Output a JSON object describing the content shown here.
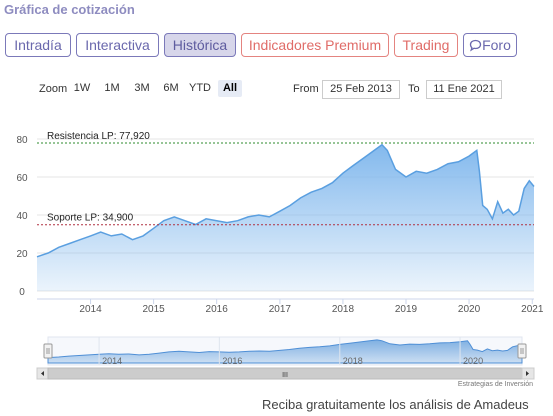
{
  "header": {
    "title": "Gráfica de cotización"
  },
  "tabs": [
    {
      "label": "Intradía",
      "style": "purple",
      "active": false
    },
    {
      "label": "Interactiva",
      "style": "purple",
      "active": false
    },
    {
      "label": "Histórica",
      "style": "purple",
      "active": true
    },
    {
      "label": "Indicadores Premium",
      "style": "red",
      "active": false
    },
    {
      "label": "Trading",
      "style": "red",
      "active": false
    },
    {
      "label": "Foro",
      "style": "purple",
      "active": false,
      "icon": "speech-bubble-icon"
    }
  ],
  "zoom": {
    "label": "Zoom",
    "buttons": [
      "1W",
      "1M",
      "3M",
      "6M",
      "YTD",
      "All"
    ],
    "selected": "All"
  },
  "date_range": {
    "from_label": "From",
    "from_value": "25 Feb 2013",
    "to_label": "To",
    "to_value": "11 Ene 2021"
  },
  "chart_data": {
    "type": "area",
    "x_label": "",
    "y_label": "",
    "ylim": [
      0,
      80
    ],
    "y_ticks": [
      "0",
      "20",
      "40",
      "60",
      "80"
    ],
    "x_ticks": [
      "2014",
      "2015",
      "2016",
      "2017",
      "2018",
      "2019",
      "2020",
      "2021"
    ],
    "x_range": [
      "2013-02-25",
      "2021-01-11"
    ],
    "series": [
      {
        "color": "#7cb5ec",
        "points": [
          [
            "2013-02-25",
            18
          ],
          [
            "2013-05-01",
            20
          ],
          [
            "2013-07-01",
            23
          ],
          [
            "2013-09-01",
            25
          ],
          [
            "2013-11-01",
            27
          ],
          [
            "2014-01-01",
            29
          ],
          [
            "2014-03-01",
            31
          ],
          [
            "2014-05-01",
            29
          ],
          [
            "2014-07-01",
            30
          ],
          [
            "2014-09-01",
            27
          ],
          [
            "2014-11-01",
            29
          ],
          [
            "2015-01-01",
            33
          ],
          [
            "2015-03-01",
            37
          ],
          [
            "2015-05-01",
            39
          ],
          [
            "2015-07-01",
            37
          ],
          [
            "2015-09-01",
            35
          ],
          [
            "2015-11-01",
            38
          ],
          [
            "2016-01-01",
            37
          ],
          [
            "2016-03-01",
            36
          ],
          [
            "2016-05-01",
            37
          ],
          [
            "2016-07-01",
            39
          ],
          [
            "2016-09-01",
            40
          ],
          [
            "2016-11-01",
            39
          ],
          [
            "2017-01-01",
            42
          ],
          [
            "2017-03-01",
            45
          ],
          [
            "2017-05-01",
            49
          ],
          [
            "2017-07-01",
            52
          ],
          [
            "2017-09-01",
            54
          ],
          [
            "2017-11-01",
            57
          ],
          [
            "2018-01-01",
            62
          ],
          [
            "2018-03-01",
            66
          ],
          [
            "2018-05-01",
            70
          ],
          [
            "2018-07-01",
            74
          ],
          [
            "2018-08-15",
            77
          ],
          [
            "2018-09-15",
            74
          ],
          [
            "2018-11-01",
            64
          ],
          [
            "2019-01-01",
            60
          ],
          [
            "2019-03-01",
            63
          ],
          [
            "2019-05-01",
            62
          ],
          [
            "2019-07-01",
            64
          ],
          [
            "2019-09-01",
            67
          ],
          [
            "2019-11-01",
            68
          ],
          [
            "2020-01-01",
            71
          ],
          [
            "2020-02-15",
            74
          ],
          [
            "2020-03-01",
            63
          ],
          [
            "2020-03-20",
            45
          ],
          [
            "2020-04-15",
            43
          ],
          [
            "2020-05-15",
            38
          ],
          [
            "2020-06-15",
            47
          ],
          [
            "2020-07-15",
            41
          ],
          [
            "2020-08-15",
            43
          ],
          [
            "2020-09-15",
            40
          ],
          [
            "2020-10-15",
            42
          ],
          [
            "2020-11-15",
            54
          ],
          [
            "2020-12-15",
            58
          ],
          [
            "2021-01-11",
            55
          ]
        ]
      }
    ],
    "plot_lines": [
      {
        "label": "Resistencia LP: 77,920",
        "value": 77.92,
        "color": "#2e8b2e"
      },
      {
        "label": "Soporte LP: 34,900",
        "value": 34.9,
        "color": "#b03040"
      }
    ],
    "navigator": {
      "x_ticks": [
        "2014",
        "2016",
        "2018",
        "2020"
      ],
      "scrollbar_grip": "III"
    },
    "credit": "Estrategias de Inversión"
  },
  "footer": {
    "text": "Reciba gratuitamente los análisis de Amadeus"
  }
}
